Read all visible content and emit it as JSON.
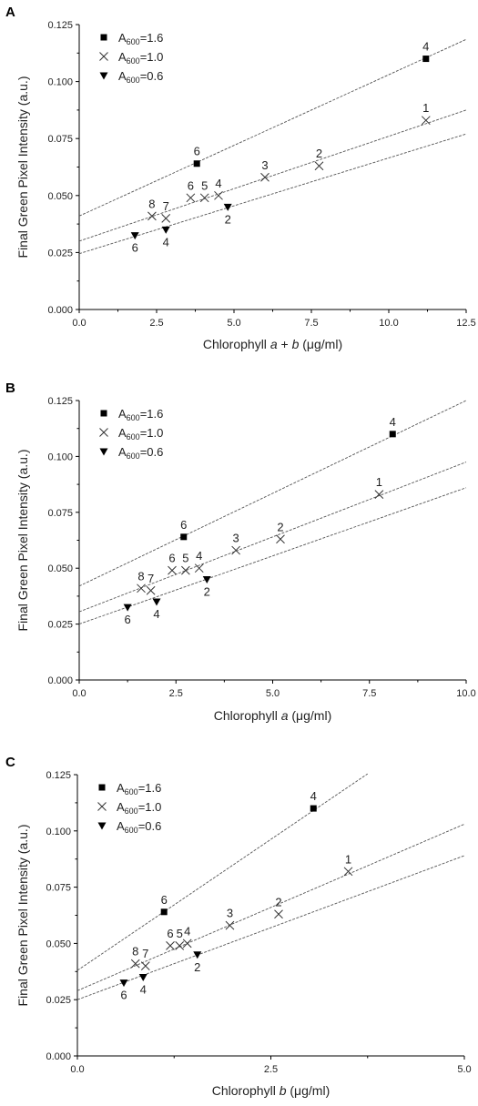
{
  "chart_data": [
    {
      "panel_label": "A",
      "type": "scatter",
      "xlabel_parts": [
        {
          "text": "Chlorophyll ",
          "italic": false
        },
        {
          "text": "a",
          "italic": true
        },
        {
          "text": " + ",
          "italic": false
        },
        {
          "text": "b",
          "italic": true
        },
        {
          "text": " (μg/ml)",
          "italic": false
        }
      ],
      "ylabel": "Final Green Pixel Intensity (a.u.)",
      "xlim": [
        0,
        12.5
      ],
      "ylim": [
        0,
        0.125
      ],
      "xticks": [
        "0.0",
        "2.5",
        "5.0",
        "7.5",
        "10.0",
        "12.5"
      ],
      "xtick_values": [
        0,
        2.5,
        5,
        7.5,
        10,
        12.5
      ],
      "yticks": [
        "0.000",
        "0.025",
        "0.050",
        "0.075",
        "0.100",
        "0.125"
      ],
      "ytick_values": [
        0,
        0.025,
        0.05,
        0.075,
        0.1,
        0.125
      ],
      "legend_position": "top-left",
      "series": [
        {
          "name": "A600=1.6",
          "marker": "square",
          "points": [
            {
              "x": 3.8,
              "y": 0.064,
              "label": "6",
              "label_pos": "above"
            },
            {
              "x": 11.2,
              "y": 0.11,
              "label": "4",
              "label_pos": "above"
            }
          ],
          "fit": {
            "intercept": 0.041,
            "slope": 0.0062,
            "x_end": 12.5
          }
        },
        {
          "name": "A600=1.0",
          "marker": "cross",
          "points": [
            {
              "x": 2.35,
              "y": 0.041,
              "label": "8",
              "label_pos": "above"
            },
            {
              "x": 2.8,
              "y": 0.04,
              "label": "7",
              "label_pos": "above"
            },
            {
              "x": 3.6,
              "y": 0.049,
              "label": "6",
              "label_pos": "above"
            },
            {
              "x": 4.05,
              "y": 0.049,
              "label": "5",
              "label_pos": "above"
            },
            {
              "x": 4.5,
              "y": 0.05,
              "label": "4",
              "label_pos": "above"
            },
            {
              "x": 6.0,
              "y": 0.058,
              "label": "3",
              "label_pos": "above"
            },
            {
              "x": 7.75,
              "y": 0.063,
              "label": "2",
              "label_pos": "above"
            },
            {
              "x": 11.2,
              "y": 0.083,
              "label": "1",
              "label_pos": "above"
            }
          ],
          "fit": {
            "intercept": 0.03,
            "slope": 0.0046,
            "x_end": 12.5
          }
        },
        {
          "name": "A600=0.6",
          "marker": "triangle-down",
          "points": [
            {
              "x": 1.8,
              "y": 0.0325,
              "label": "6",
              "label_pos": "below"
            },
            {
              "x": 2.8,
              "y": 0.035,
              "label": "4",
              "label_pos": "below"
            },
            {
              "x": 4.8,
              "y": 0.045,
              "label": "2",
              "label_pos": "below"
            }
          ],
          "fit": {
            "intercept": 0.0245,
            "slope": 0.0042,
            "x_end": 12.5
          }
        }
      ]
    },
    {
      "panel_label": "B",
      "type": "scatter",
      "xlabel_parts": [
        {
          "text": "Chlorophyll ",
          "italic": false
        },
        {
          "text": "a",
          "italic": true
        },
        {
          "text": " (μg/ml)",
          "italic": false
        }
      ],
      "ylabel": "Final Green Pixel Intensity (a.u.)",
      "xlim": [
        0,
        10
      ],
      "ylim": [
        0,
        0.125
      ],
      "xticks": [
        "0.0",
        "2.5",
        "5.0",
        "7.5",
        "10.0"
      ],
      "xtick_values": [
        0,
        2.5,
        5,
        7.5,
        10
      ],
      "yticks": [
        "0.000",
        "0.025",
        "0.050",
        "0.075",
        "0.100",
        "0.125"
      ],
      "ytick_values": [
        0,
        0.025,
        0.05,
        0.075,
        0.1,
        0.125
      ],
      "legend_position": "top-left",
      "series": [
        {
          "name": "A600=1.6",
          "marker": "square",
          "points": [
            {
              "x": 2.7,
              "y": 0.064,
              "label": "6",
              "label_pos": "above"
            },
            {
              "x": 8.1,
              "y": 0.11,
              "label": "4",
              "label_pos": "above"
            }
          ],
          "fit": {
            "intercept": 0.042,
            "slope": 0.0083,
            "x_end": 10
          }
        },
        {
          "name": "A600=1.0",
          "marker": "cross",
          "points": [
            {
              "x": 1.6,
              "y": 0.041,
              "label": "8",
              "label_pos": "above"
            },
            {
              "x": 1.85,
              "y": 0.04,
              "label": "7",
              "label_pos": "above"
            },
            {
              "x": 2.4,
              "y": 0.049,
              "label": "6",
              "label_pos": "above"
            },
            {
              "x": 2.75,
              "y": 0.049,
              "label": "5",
              "label_pos": "above"
            },
            {
              "x": 3.1,
              "y": 0.05,
              "label": "4",
              "label_pos": "above"
            },
            {
              "x": 4.05,
              "y": 0.058,
              "label": "3",
              "label_pos": "above"
            },
            {
              "x": 5.2,
              "y": 0.063,
              "label": "2",
              "label_pos": "above"
            },
            {
              "x": 7.75,
              "y": 0.083,
              "label": "1",
              "label_pos": "above"
            }
          ],
          "fit": {
            "intercept": 0.0305,
            "slope": 0.0067,
            "x_end": 10
          }
        },
        {
          "name": "A600=0.6",
          "marker": "triangle-down",
          "points": [
            {
              "x": 1.25,
              "y": 0.0325,
              "label": "6",
              "label_pos": "below"
            },
            {
              "x": 2.0,
              "y": 0.035,
              "label": "4",
              "label_pos": "below"
            },
            {
              "x": 3.3,
              "y": 0.045,
              "label": "2",
              "label_pos": "below"
            }
          ],
          "fit": {
            "intercept": 0.025,
            "slope": 0.0061,
            "x_end": 10
          }
        }
      ]
    },
    {
      "panel_label": "C",
      "type": "scatter",
      "xlabel_parts": [
        {
          "text": "Chlorophyll ",
          "italic": false
        },
        {
          "text": "b",
          "italic": true
        },
        {
          "text": " (μg/ml)",
          "italic": false
        }
      ],
      "ylabel": "Final Green Pixel Intensity (a.u.)",
      "xlim": [
        0,
        5
      ],
      "ylim": [
        0,
        0.125
      ],
      "xticks": [
        "0.0",
        "2.5",
        "5.0"
      ],
      "xtick_values": [
        0,
        2.5,
        5
      ],
      "yticks": [
        "0.000",
        "0.025",
        "0.050",
        "0.075",
        "0.100",
        "0.125"
      ],
      "ytick_values": [
        0,
        0.025,
        0.05,
        0.075,
        0.1,
        0.125
      ],
      "legend_position": "top-left",
      "series": [
        {
          "name": "A600=1.6",
          "marker": "square",
          "points": [
            {
              "x": 1.12,
              "y": 0.064,
              "label": "6",
              "label_pos": "above"
            },
            {
              "x": 3.05,
              "y": 0.11,
              "label": "4",
              "label_pos": "above"
            }
          ],
          "fit": {
            "intercept": 0.038,
            "slope": 0.0233,
            "x_end": 3.75
          }
        },
        {
          "name": "A600=1.0",
          "marker": "cross",
          "points": [
            {
              "x": 0.75,
              "y": 0.041,
              "label": "8",
              "label_pos": "above"
            },
            {
              "x": 0.88,
              "y": 0.04,
              "label": "7",
              "label_pos": "above"
            },
            {
              "x": 1.2,
              "y": 0.049,
              "label": "6",
              "label_pos": "above"
            },
            {
              "x": 1.32,
              "y": 0.049,
              "label": "5",
              "label_pos": "above"
            },
            {
              "x": 1.42,
              "y": 0.05,
              "label": "4",
              "label_pos": "above"
            },
            {
              "x": 1.97,
              "y": 0.058,
              "label": "3",
              "label_pos": "above"
            },
            {
              "x": 2.6,
              "y": 0.063,
              "label": "2",
              "label_pos": "above"
            },
            {
              "x": 3.5,
              "y": 0.082,
              "label": "1",
              "label_pos": "above"
            }
          ],
          "fit": {
            "intercept": 0.029,
            "slope": 0.0148,
            "x_end": 5
          }
        },
        {
          "name": "A600=0.6",
          "marker": "triangle-down",
          "points": [
            {
              "x": 0.6,
              "y": 0.0325,
              "label": "6",
              "label_pos": "below"
            },
            {
              "x": 0.85,
              "y": 0.035,
              "label": "4",
              "label_pos": "below"
            },
            {
              "x": 1.55,
              "y": 0.045,
              "label": "2",
              "label_pos": "below"
            }
          ],
          "fit": {
            "intercept": 0.025,
            "slope": 0.0128,
            "x_end": 5
          }
        }
      ]
    }
  ]
}
